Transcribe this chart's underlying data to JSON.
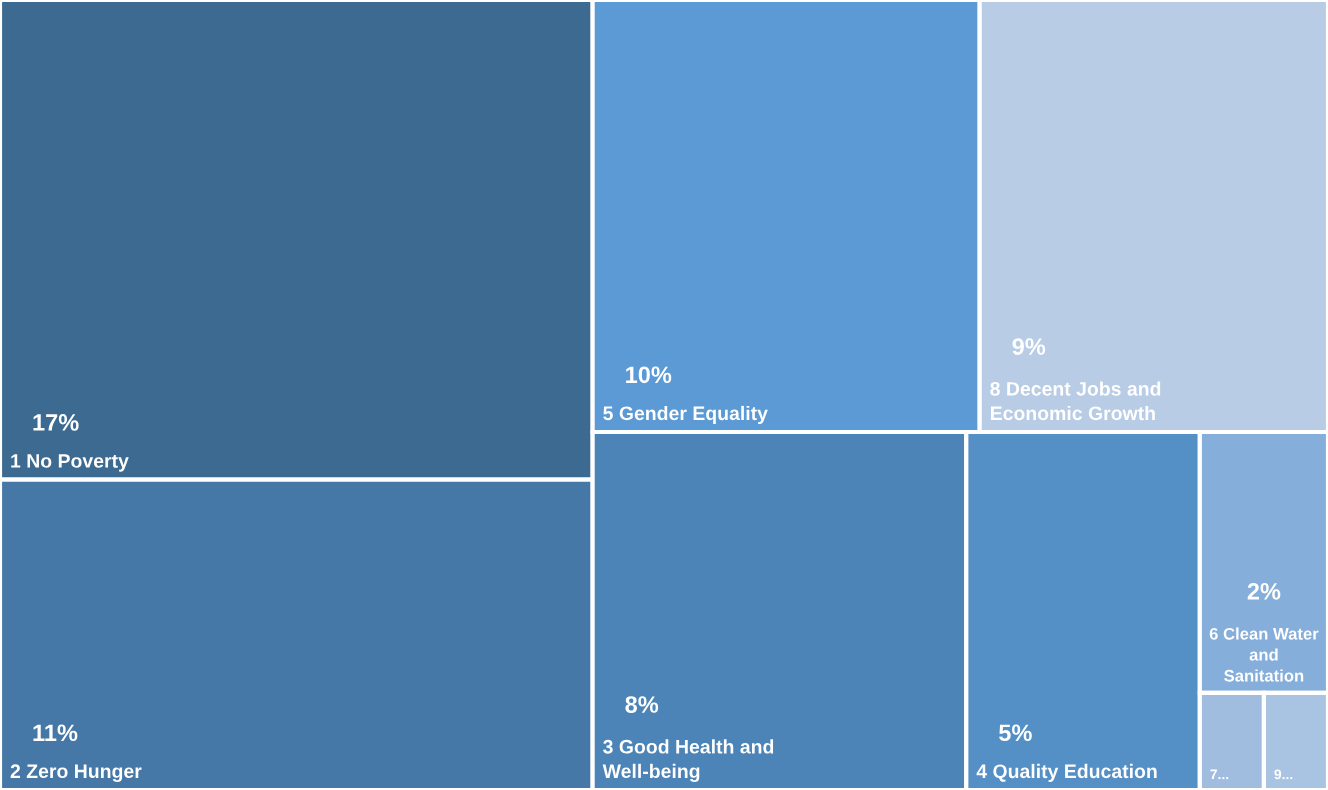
{
  "chart_data": {
    "type": "other",
    "categories": [
      "1 No Poverty",
      "2 Zero Hunger",
      "5 Gender Equality",
      "8 Decent Jobs and\nEconomic Growth",
      "3 Good Health and\nWell-being",
      "4 Quality Education",
      "6 Clean Water\nand\nSanitation",
      "7...",
      "9..."
    ],
    "values": [
      17,
      11,
      10,
      9,
      8,
      5,
      2,
      null,
      null
    ],
    "value_labels": [
      "17%",
      "11%",
      "10%",
      "9%",
      "8%",
      "5%",
      "2%",
      null,
      null
    ],
    "colors": [
      "#3d6a90",
      "#4678a7",
      "#5b9ad5",
      "#b8cce6",
      "#4c84b8",
      "#548fc6",
      "#85aedb",
      "#a0bde0",
      "#a9c4e3"
    ]
  }
}
